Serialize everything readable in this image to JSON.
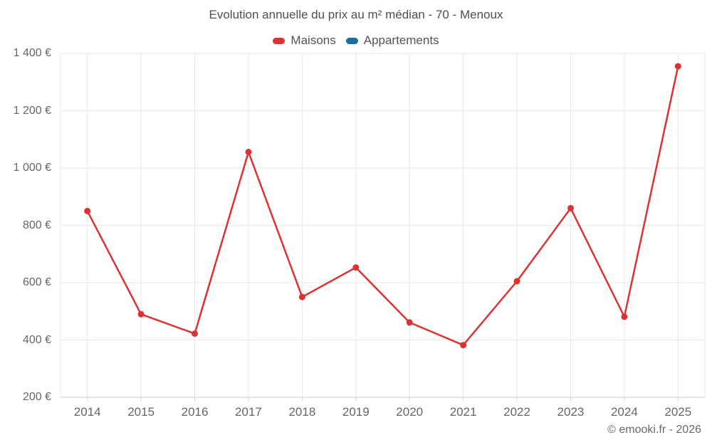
{
  "title": "Evolution annuelle du prix au m² médian - 70 - Menoux",
  "footer": "© emooki.fr - 2026",
  "colors": {
    "maisons": "#dc3232",
    "appartements": "#1a6d9e",
    "gridline": "#e7e7e7",
    "axis_line": "#cccccc",
    "tick_line": "#d6d6d6",
    "text_gray": "#63666a"
  },
  "chart_data": {
    "type": "line",
    "title": "Evolution annuelle du prix au m² médian - 70 - Menoux",
    "categories": [
      "2014",
      "2015",
      "2016",
      "2017",
      "2018",
      "2019",
      "2020",
      "2021",
      "2022",
      "2023",
      "2024",
      "2025"
    ],
    "series": [
      {
        "name": "Maisons",
        "color": "#dc3232",
        "values": [
          850,
          490,
          422,
          1056,
          550,
          653,
          461,
          382,
          605,
          860,
          481,
          1355
        ]
      },
      {
        "name": "Appartements",
        "color": "#1a6d9e",
        "values": []
      }
    ],
    "xlabel": "",
    "ylabel": "",
    "ylim": [
      200,
      1400
    ],
    "y_ticks": [
      200,
      400,
      600,
      800,
      1000,
      1200,
      1400
    ],
    "y_tick_labels": [
      "200 €",
      "400 €",
      "600 €",
      "800 €",
      "1 000 €",
      "1 200 €",
      "1 400 €"
    ],
    "grid": true,
    "legend_position": "top",
    "currency": "€"
  }
}
